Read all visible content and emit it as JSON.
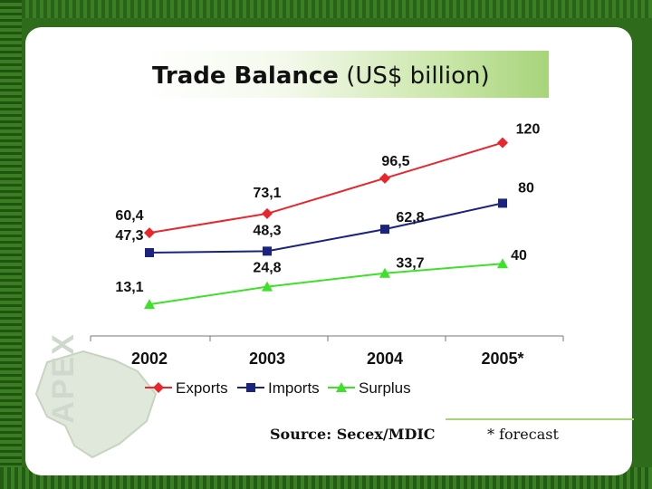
{
  "slide": {
    "title_bold": "Trade Balance",
    "title_rest": "(US$ billion)",
    "source": "Source: Secex/MDIC",
    "footnote": "* forecast",
    "logo_text": "APEX"
  },
  "colors": {
    "exports": "#e8262c",
    "imports": "#1a237e",
    "surplus": "#3ee12a",
    "background": "#2e6b1a"
  },
  "chart_data": {
    "type": "line",
    "categories": [
      "2002",
      "2003",
      "2004",
      "2005*"
    ],
    "ylim": [
      0,
      130
    ],
    "grid": false,
    "legend_position": "bottom",
    "series": [
      {
        "name": "Exports",
        "marker": "diamond",
        "values": [
          60.4,
          73.1,
          96.5,
          120
        ],
        "labels": [
          "60,4",
          "73,1",
          "96,5",
          "120"
        ]
      },
      {
        "name": "Imports",
        "marker": "square",
        "values": [
          47.3,
          48.3,
          62.8,
          80
        ],
        "labels": [
          "47,3",
          "48,3",
          "62,8",
          "80"
        ]
      },
      {
        "name": "Surplus",
        "marker": "triangle",
        "values": [
          13.1,
          24.8,
          33.7,
          40
        ],
        "labels": [
          "13,1",
          "24,8",
          "33,7",
          "40"
        ]
      }
    ]
  }
}
